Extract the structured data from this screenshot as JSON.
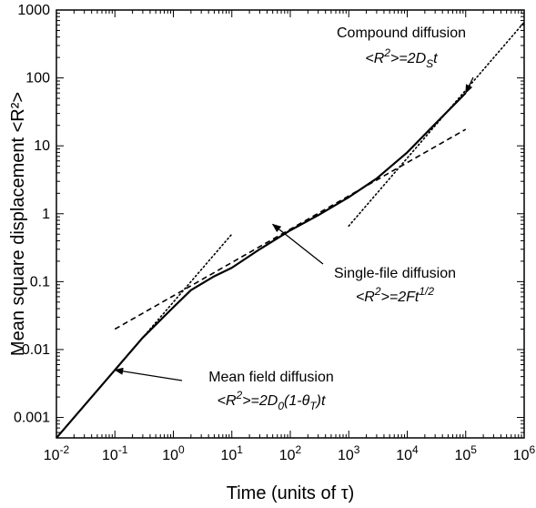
{
  "chart_data": {
    "type": "line",
    "xlabel": "Time (units of τ)",
    "ylabel": "Mean square displacement <R²>",
    "xscale": "log",
    "yscale": "log",
    "xlim": [
      0.01,
      1000000
    ],
    "ylim": [
      0.0005,
      1000
    ],
    "x_ticks": [
      {
        "value": 0.01,
        "base": "10",
        "exp": "-2"
      },
      {
        "value": 0.1,
        "base": "10",
        "exp": "-1"
      },
      {
        "value": 1,
        "base": "10",
        "exp": "0"
      },
      {
        "value": 10,
        "base": "10",
        "exp": "1"
      },
      {
        "value": 100,
        "base": "10",
        "exp": "2"
      },
      {
        "value": 1000,
        "base": "10",
        "exp": "3"
      },
      {
        "value": 10000,
        "base": "10",
        "exp": "4"
      },
      {
        "value": 100000,
        "base": "10",
        "exp": "5"
      },
      {
        "value": 1000000,
        "base": "10",
        "exp": "6"
      }
    ],
    "y_ticks": [
      {
        "value": 0.001,
        "label": "0.001"
      },
      {
        "value": 0.01,
        "label": "0.01"
      },
      {
        "value": 0.1,
        "label": "0.1"
      },
      {
        "value": 1,
        "label": "1"
      },
      {
        "value": 10,
        "label": "10"
      },
      {
        "value": 100,
        "label": "100"
      },
      {
        "value": 1000,
        "label": "1000"
      }
    ],
    "series": [
      {
        "style": "solid",
        "x": [
          0.01,
          0.03,
          0.1,
          0.3,
          1,
          2,
          5,
          10,
          30,
          100,
          300,
          1000,
          3000,
          10000,
          30000,
          100000
        ],
        "y": [
          0.0005,
          0.0015,
          0.005,
          0.015,
          0.042,
          0.075,
          0.12,
          0.16,
          0.3,
          0.57,
          0.95,
          1.75,
          3.3,
          8.0,
          21,
          60
        ]
      },
      {
        "style": "dotted",
        "x": [
          0.01,
          10
        ],
        "y": [
          0.0005,
          0.5
        ]
      },
      {
        "style": "dashed",
        "x": [
          0.1,
          100000
        ],
        "y": [
          0.02,
          17.5
        ]
      },
      {
        "style": "dotted",
        "x": [
          1000,
          1000000
        ],
        "y": [
          0.66,
          660
        ]
      }
    ],
    "annotations": [
      {
        "title": "Compound diffusion",
        "equation": [
          {
            "t": "<R"
          },
          {
            "t": "2",
            "sup": true
          },
          {
            "t": ">=2D"
          },
          {
            "t": "S",
            "sub": true
          },
          {
            "t": "t"
          }
        ],
        "arrow_to": [
          100000,
          60
        ]
      },
      {
        "title": "Single-file diffusion",
        "equation": [
          {
            "t": "<R"
          },
          {
            "t": "2",
            "sup": true
          },
          {
            "t": ">=2Ft"
          },
          {
            "t": "1/2",
            "sup": true
          }
        ],
        "arrow_to": [
          50,
          0.7
        ]
      },
      {
        "title": "Mean field diffusion",
        "equation": [
          {
            "t": "<R"
          },
          {
            "t": "2",
            "sup": true
          },
          {
            "t": ">=2D"
          },
          {
            "t": "0",
            "sub": true
          },
          {
            "t": "(1-θ"
          },
          {
            "t": "T",
            "sub": true
          },
          {
            "t": ")t"
          }
        ],
        "arrow_to": [
          0.1,
          0.005
        ]
      }
    ]
  }
}
